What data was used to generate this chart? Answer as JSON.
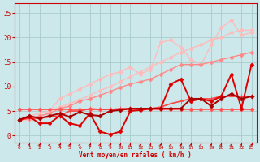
{
  "background_color": "#cce8ea",
  "grid_color": "#aacccc",
  "xlabel": "Vent moyen/en rafales ( km/h )",
  "ylabel_ticks": [
    0,
    5,
    10,
    15,
    20,
    25
  ],
  "xlim": [
    -0.5,
    23.5
  ],
  "ylim": [
    -1.5,
    27
  ],
  "x": [
    0,
    1,
    2,
    3,
    4,
    5,
    6,
    7,
    8,
    9,
    10,
    11,
    12,
    13,
    14,
    15,
    16,
    17,
    18,
    19,
    20,
    21,
    22,
    23
  ],
  "lines": [
    {
      "color": "#ffbbbb",
      "lw": 1.0,
      "marker": "D",
      "ms": 2.5,
      "alpha": 1.0,
      "y": [
        5.3,
        5.3,
        5.3,
        5.3,
        5.3,
        5.3,
        5.3,
        5.3,
        5.3,
        5.3,
        5.3,
        5.3,
        5.3,
        5.3,
        5.3,
        5.3,
        5.3,
        5.3,
        5.3,
        5.3,
        5.3,
        5.3,
        5.3,
        5.3
      ]
    },
    {
      "color": "#ffbbbb",
      "lw": 1.0,
      "marker": "D",
      "ms": 2.5,
      "alpha": 1.0,
      "y": [
        3.2,
        4.0,
        4.5,
        5.0,
        5.8,
        6.5,
        7.3,
        8.2,
        9.2,
        10.0,
        11.0,
        12.0,
        13.0,
        14.0,
        15.0,
        16.0,
        17.0,
        17.8,
        18.5,
        19.5,
        20.0,
        21.0,
        21.5,
        21.5
      ]
    },
    {
      "color": "#ffbbbb",
      "lw": 1.0,
      "marker": "D",
      "ms": 2.5,
      "alpha": 1.0,
      "y": [
        3.2,
        3.2,
        3.5,
        5.0,
        7.5,
        8.5,
        9.5,
        10.5,
        11.5,
        12.5,
        13.0,
        14.0,
        12.5,
        13.5,
        19.0,
        19.5,
        18.0,
        15.5,
        14.5,
        18.5,
        22.0,
        23.5,
        20.5,
        21.0
      ]
    },
    {
      "color": "#ff8888",
      "lw": 1.0,
      "marker": "D",
      "ms": 2.5,
      "alpha": 1.0,
      "y": [
        3.2,
        3.5,
        4.0,
        4.5,
        5.5,
        6.0,
        7.0,
        7.5,
        8.2,
        9.0,
        9.8,
        10.5,
        11.0,
        11.5,
        12.5,
        13.5,
        14.5,
        14.5,
        14.5,
        15.0,
        15.5,
        16.0,
        16.5,
        17.0
      ]
    },
    {
      "color": "#ff5555",
      "lw": 1.2,
      "marker": "D",
      "ms": 2.5,
      "alpha": 1.0,
      "y": [
        5.3,
        5.3,
        5.3,
        5.3,
        5.3,
        5.3,
        5.3,
        5.3,
        5.3,
        5.3,
        5.3,
        5.3,
        5.3,
        5.3,
        5.3,
        5.3,
        5.3,
        5.3,
        5.3,
        5.3,
        5.3,
        5.3,
        5.3,
        5.3
      ]
    },
    {
      "color": "#ff4444",
      "lw": 1.2,
      "marker": "+",
      "ms": 4,
      "alpha": 1.0,
      "y": [
        3.2,
        3.5,
        3.5,
        3.8,
        4.0,
        5.0,
        5.0,
        5.5,
        5.3,
        5.3,
        5.5,
        5.5,
        5.5,
        5.5,
        5.8,
        6.5,
        7.0,
        7.5,
        7.5,
        7.5,
        8.0,
        8.0,
        8.0,
        8.0
      ]
    },
    {
      "color": "#dd0000",
      "lw": 1.4,
      "marker": "D",
      "ms": 2.5,
      "alpha": 1.0,
      "y": [
        3.2,
        3.8,
        2.5,
        2.5,
        4.0,
        2.5,
        2.0,
        4.5,
        0.8,
        0.2,
        0.8,
        5.0,
        5.2,
        5.5,
        5.5,
        10.5,
        11.5,
        7.0,
        7.5,
        7.0,
        8.0,
        12.5,
        5.5,
        14.5
      ]
    },
    {
      "color": "#aa0000",
      "lw": 1.4,
      "marker": "D",
      "ms": 2.5,
      "alpha": 1.0,
      "y": [
        3.2,
        4.0,
        3.5,
        4.0,
        4.5,
        3.8,
        4.8,
        4.2,
        4.0,
        5.0,
        5.2,
        5.5,
        5.5,
        5.5,
        5.5,
        5.5,
        5.5,
        7.5,
        7.5,
        6.0,
        7.5,
        8.5,
        7.5,
        8.0
      ]
    }
  ],
  "arrow_color": "#cc0000",
  "tick_color": "#cc0000",
  "label_color": "#cc0000",
  "spine_color": "#cc0000"
}
